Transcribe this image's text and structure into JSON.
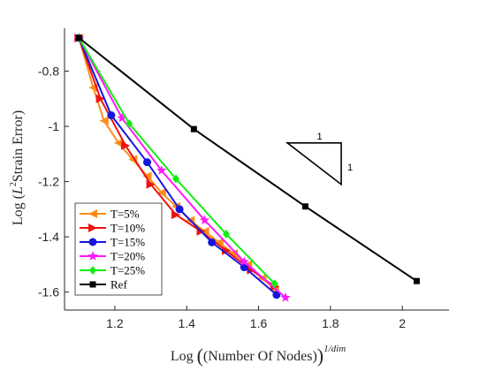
{
  "chart_data": {
    "type": "line",
    "title": "",
    "xlabel": {
      "prefix": "Log",
      "inner": "(Number Of Nodes)",
      "exponent": "1/dim"
    },
    "ylabel": {
      "prefix": "Log",
      "inner": "Strain Error",
      "script": "L",
      "sup": "2"
    },
    "xlim": [
      1.06,
      2.13
    ],
    "ylim": [
      -1.665,
      -0.645
    ],
    "xticks": [
      1.2,
      1.4,
      1.6,
      1.8,
      2
    ],
    "xtick_labels": [
      "1.2",
      "1.4",
      "1.6",
      "1.8",
      "2"
    ],
    "yticks": [
      -0.8,
      -1,
      -1.2,
      -1.4,
      -1.6
    ],
    "ytick_labels": [
      "-0.8",
      "-1",
      "-1.2",
      "-1.4",
      "-1.6"
    ],
    "grid": false,
    "legend_position": "bottom-left",
    "slope_triangle": {
      "horizontal_label": "1",
      "vertical_label": "1",
      "x": [
        1.68,
        1.83
      ],
      "y": [
        -1.06,
        -1.21
      ]
    },
    "series": [
      {
        "name": "T=5%",
        "color": "#ff8c1a",
        "marker": "triangle-left",
        "x": [
          1.1,
          1.14,
          1.17,
          1.21,
          1.25,
          1.29,
          1.33,
          1.37,
          1.41,
          1.45,
          1.49,
          1.53,
          1.57,
          1.61,
          1.645
        ],
        "y": [
          -0.68,
          -0.86,
          -0.98,
          -1.06,
          -1.12,
          -1.18,
          -1.24,
          -1.29,
          -1.34,
          -1.38,
          -1.42,
          -1.46,
          -1.5,
          -1.55,
          -1.59
        ]
      },
      {
        "name": "T=10%",
        "color": "#ee1111",
        "marker": "triangle-right",
        "x": [
          1.1,
          1.16,
          1.23,
          1.3,
          1.37,
          1.44,
          1.51,
          1.58,
          1.645
        ],
        "y": [
          -0.68,
          -0.9,
          -1.07,
          -1.21,
          -1.32,
          -1.38,
          -1.45,
          -1.52,
          -1.58
        ]
      },
      {
        "name": "T=15%",
        "color": "#1515dd",
        "marker": "circle",
        "x": [
          1.1,
          1.19,
          1.29,
          1.38,
          1.47,
          1.56,
          1.65
        ],
        "y": [
          -0.68,
          -0.96,
          -1.13,
          -1.3,
          -1.42,
          -1.51,
          -1.61
        ]
      },
      {
        "name": "T=20%",
        "color": "#ff19ff",
        "marker": "star",
        "x": [
          1.1,
          1.22,
          1.33,
          1.45,
          1.56,
          1.675
        ],
        "y": [
          -0.68,
          -0.97,
          -1.16,
          -1.34,
          -1.49,
          -1.62
        ]
      },
      {
        "name": "T=25%",
        "color": "#11ee11",
        "marker": "diamond",
        "x": [
          1.1,
          1.24,
          1.37,
          1.51,
          1.645
        ],
        "y": [
          -0.68,
          -0.99,
          -1.19,
          -1.39,
          -1.57
        ]
      },
      {
        "name": "Ref",
        "color": "#000000",
        "marker": "square",
        "x": [
          1.1,
          1.42,
          1.73,
          2.04
        ],
        "y": [
          -0.68,
          -1.01,
          -1.29,
          -1.56
        ]
      }
    ]
  }
}
